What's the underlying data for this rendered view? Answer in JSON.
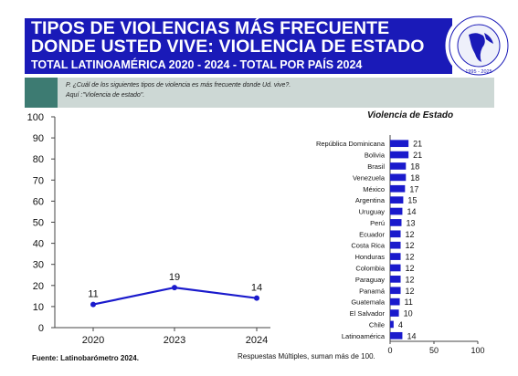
{
  "header": {
    "title_line1": "TIPOS DE VIOLENCIAS MÁS FRECUENTE",
    "title_line2": "DONDE USTED VIVE: VIOLENCIA DE ESTADO",
    "subtitle": "TOTAL LATINOAMÉRICA 2020 - 2024 - TOTAL POR PAÍS 2024"
  },
  "logo": {
    "icon": "latinobarometro-globe-logo",
    "text": "1995 - 2025"
  },
  "question": {
    "line1": "P. ¿Cuál de los siguientes tipos de violencia es más frecuente donde Ud. vive?.",
    "line2": "Aquí :\"Violencia de estado\"."
  },
  "colors": {
    "header_bg": "#1a1ab8",
    "series": "#1a1acc",
    "question_bg": "#cdd8d5",
    "question_dark": "#3d7b72"
  },
  "chart_data": [
    {
      "type": "line",
      "x": [
        "2020",
        "2023",
        "2024"
      ],
      "series": [
        {
          "values": [
            11,
            19,
            14
          ]
        }
      ],
      "data_labels": [
        "11",
        "19",
        "14"
      ],
      "ylim": [
        0,
        100
      ],
      "yticks": [
        "0",
        "10",
        "20",
        "30",
        "40",
        "50",
        "60",
        "70",
        "80",
        "90",
        "100"
      ],
      "grid": false
    },
    {
      "type": "bar",
      "orientation": "horizontal",
      "title": "Violencia de Estado",
      "categories": [
        "República Dominicana",
        "Bolivia",
        "Brasil",
        "Venezuela",
        "México",
        "Argentina",
        "Uruguay",
        "Perú",
        "Ecuador",
        "Costa Rica",
        "Honduras",
        "Colombia",
        "Paraguay",
        "Panamá",
        "Guatemala",
        "El Salvador",
        "Chile",
        "Latinoamérica"
      ],
      "values": [
        21,
        21,
        18,
        18,
        17,
        15,
        14,
        13,
        12,
        12,
        12,
        12,
        12,
        12,
        11,
        10,
        4,
        14
      ],
      "xlim": [
        0,
        100
      ],
      "xticks": [
        "0",
        "50",
        "100"
      ],
      "grid": false
    }
  ],
  "footer": {
    "source": "Fuente: Latinobarómetro 2024.",
    "note": "Respuestas Múltiples, suman más de 100."
  }
}
